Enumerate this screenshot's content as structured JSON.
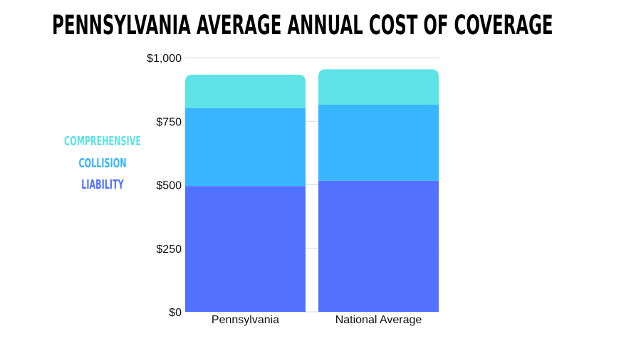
{
  "chart_data": {
    "type": "bar",
    "stacked": true,
    "title": "Pennsylvania Average Annual Cost of Coverage",
    "categories": [
      "Pennsylvania",
      "National Average"
    ],
    "series": [
      {
        "name": "Liability",
        "color": "#5271ff",
        "values": [
          495,
          516
        ]
      },
      {
        "name": "Collision",
        "color": "#38b6ff",
        "values": [
          307,
          299
        ]
      },
      {
        "name": "Comprehensive",
        "color": "#5ee3e6",
        "values": [
          131,
          139
        ]
      }
    ],
    "ylim": [
      0,
      1000
    ],
    "yticks": [
      0,
      250,
      500,
      750,
      1000
    ],
    "ytick_labels": [
      "$0",
      "$250",
      "$500",
      "$750",
      "$1,000"
    ],
    "xlabel": "",
    "ylabel": "",
    "grid": true,
    "legend_placement": "left"
  }
}
